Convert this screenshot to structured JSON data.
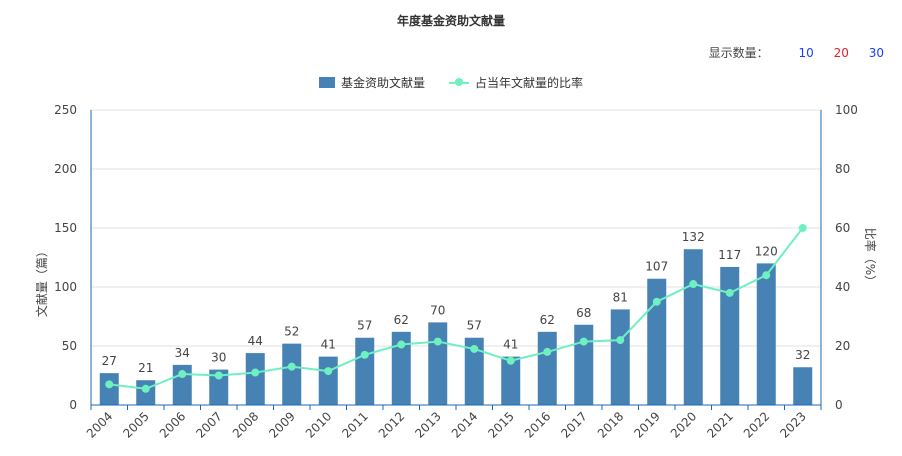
{
  "page": {
    "title": "年度基金资助文献量",
    "display_count_label": "显示数量：",
    "display_options": [
      "10",
      "20",
      "30"
    ],
    "legend": {
      "bar_label": "基金资助文献量",
      "line_label": "占当年文献量的比率"
    },
    "y_left_label": "文献量（篇）",
    "y_right_label": "比率（%）"
  },
  "colors": {
    "bar": "#4682b4",
    "line": "#6ef0c0",
    "axis": "#1b6bb0",
    "grid": "#e0e0e0"
  },
  "chart_data": {
    "type": "bar",
    "title": "年度基金资助文献量",
    "categories": [
      "2004",
      "2005",
      "2006",
      "2007",
      "2008",
      "2009",
      "2010",
      "2011",
      "2012",
      "2013",
      "2014",
      "2015",
      "2016",
      "2017",
      "2018",
      "2019",
      "2020",
      "2021",
      "2022",
      "2023"
    ],
    "series": [
      {
        "name": "基金资助文献量",
        "type": "bar",
        "axis": "left",
        "values": [
          27,
          21,
          34,
          30,
          44,
          52,
          41,
          57,
          62,
          70,
          57,
          41,
          62,
          68,
          81,
          107,
          132,
          117,
          120,
          32
        ]
      },
      {
        "name": "占当年文献量的比率",
        "type": "line",
        "axis": "right",
        "values": [
          7,
          5.5,
          10.5,
          10,
          11,
          13,
          11.5,
          17,
          20.5,
          21.5,
          19,
          15,
          18,
          21.5,
          22,
          35,
          41,
          38,
          44,
          60
        ]
      }
    ],
    "y_left": {
      "label": "文献量（篇）",
      "ylim": [
        0,
        250
      ],
      "ticks": [
        0,
        50,
        100,
        150,
        200,
        250
      ]
    },
    "y_right": {
      "label": "比率（%）",
      "ylim": [
        0,
        100
      ],
      "ticks": [
        0,
        20,
        40,
        60,
        80,
        100
      ]
    },
    "grid": true,
    "legend_position": "top-center",
    "bar_data_labels": true
  }
}
